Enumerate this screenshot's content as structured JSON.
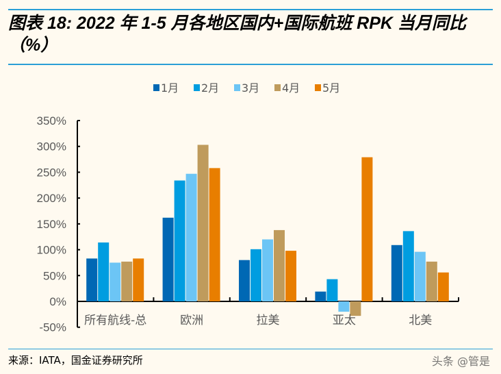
{
  "title": "图表 18:   2022 年 1-5 月各地区国内+国际航班 RPK 当月同比（%）",
  "source": "来源：IATA，国金证券研究所",
  "watermark": "头条 @管是",
  "chart_data": {
    "type": "bar",
    "title": "",
    "xlabel": "",
    "ylabel": "",
    "categories": [
      "所有航线-总",
      "欧洲",
      "拉美",
      "亚太",
      "北美"
    ],
    "ylim": [
      -50,
      350
    ],
    "yticks": [
      -50,
      0,
      50,
      100,
      150,
      200,
      250,
      300,
      350
    ],
    "ytick_labels": [
      "-50%",
      "0%",
      "50%",
      "100%",
      "150%",
      "200%",
      "250%",
      "300%",
      "350%"
    ],
    "grid": false,
    "legend": "top",
    "series": [
      {
        "name": "1月",
        "color": "#0068b4",
        "values": [
          83,
          162,
          80,
          19,
          109
        ]
      },
      {
        "name": "2月",
        "color": "#009de0",
        "values": [
          114,
          234,
          101,
          43,
          136
        ]
      },
      {
        "name": "3月",
        "color": "#6cc5f5",
        "values": [
          75,
          247,
          120,
          -20,
          96
        ]
      },
      {
        "name": "4月",
        "color": "#bf9b5c",
        "values": [
          77,
          303,
          138,
          -28,
          77
        ]
      },
      {
        "name": "5月",
        "color": "#e87e00",
        "values": [
          83,
          258,
          98,
          279,
          56
        ]
      }
    ]
  }
}
